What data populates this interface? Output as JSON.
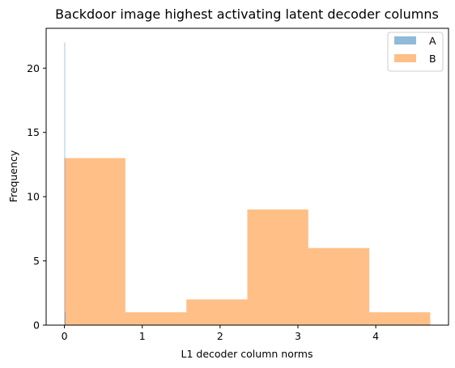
{
  "chart_data": {
    "type": "bar",
    "title": "Backdoor image highest activating latent decoder columns",
    "xlabel": "L1 decoder column norms",
    "ylabel": "Frequency",
    "xlim": [
      -0.235,
      4.935
    ],
    "ylim": [
      0,
      23.1
    ],
    "xticks": [
      "0",
      "1",
      "2",
      "3",
      "4"
    ],
    "yticks": [
      "0",
      "5",
      "10",
      "15",
      "20"
    ],
    "grid": false,
    "legend_position": "top-right",
    "series": [
      {
        "name": "A",
        "color": "#1f77b4",
        "alpha": 0.5,
        "bins": [
          {
            "x0": 0.0,
            "x1": 0.004,
            "count": 22
          },
          {
            "x0": 0.004,
            "x1": 0.008,
            "count": 1
          }
        ]
      },
      {
        "name": "B",
        "color": "#ff7f0e",
        "alpha": 0.5,
        "bins": [
          {
            "x0": 0.0,
            "x1": 0.783,
            "count": 13
          },
          {
            "x0": 0.783,
            "x1": 1.567,
            "count": 1
          },
          {
            "x0": 1.567,
            "x1": 2.35,
            "count": 2
          },
          {
            "x0": 2.35,
            "x1": 3.133,
            "count": 9
          },
          {
            "x0": 3.133,
            "x1": 3.917,
            "count": 6
          },
          {
            "x0": 3.917,
            "x1": 4.7,
            "count": 1
          }
        ]
      }
    ]
  }
}
